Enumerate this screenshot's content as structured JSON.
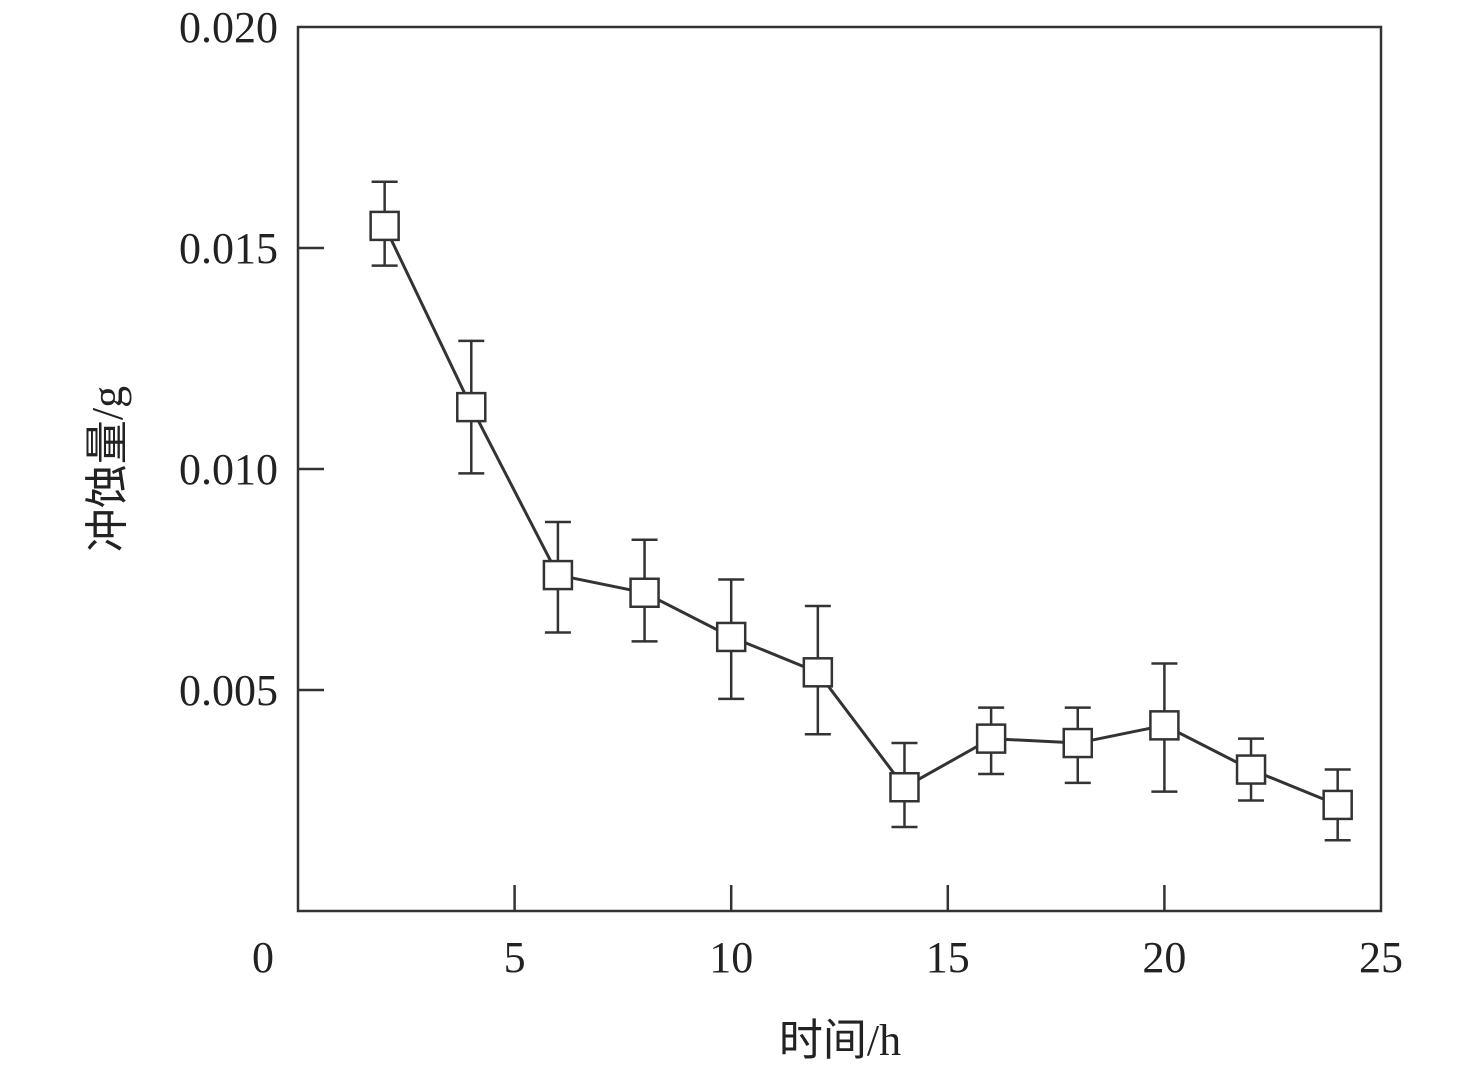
{
  "chart_data": {
    "type": "line",
    "title": "",
    "xlabel": "时间/h",
    "ylabel": "冲蚀量/g",
    "xlim": [
      0,
      25
    ],
    "ylim": [
      0,
      0.02
    ],
    "xticks": [
      "0",
      "5",
      "10",
      "15",
      "20",
      "25"
    ],
    "xtick_values": [
      0,
      5,
      10,
      15,
      20,
      25
    ],
    "yticks": [
      "0.005",
      "0.010",
      "0.015",
      "0.020"
    ],
    "ytick_values": [
      0.005,
      0.01,
      0.015,
      0.02
    ],
    "grid": false,
    "marker": "open-square",
    "color": "#333333",
    "series": [
      {
        "name": "冲蚀量",
        "x": [
          2,
          4,
          6,
          8,
          10,
          12,
          14,
          16,
          18,
          20,
          22,
          24
        ],
        "y": [
          0.0155,
          0.0114,
          0.0076,
          0.0072,
          0.0062,
          0.0054,
          0.0028,
          0.0039,
          0.0038,
          0.0042,
          0.0032,
          0.0024
        ],
        "err_upper": [
          0.0165,
          0.0129,
          0.0088,
          0.0084,
          0.0075,
          0.0069,
          0.0038,
          0.0046,
          0.0046,
          0.0056,
          0.0039,
          0.0032
        ],
        "err_lower": [
          0.0146,
          0.0099,
          0.0063,
          0.0061,
          0.0048,
          0.004,
          0.0019,
          0.0031,
          0.0029,
          0.0027,
          0.0025,
          0.0016
        ]
      }
    ]
  }
}
